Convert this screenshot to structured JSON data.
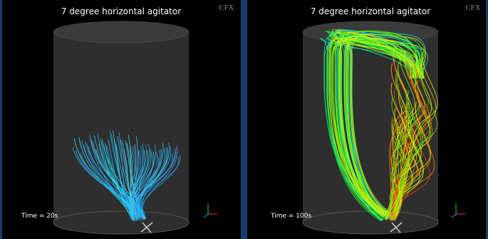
{
  "panels": [
    {
      "title": "7 degree horizontal agitator",
      "time_label": "Time = 20s",
      "logo": "CFX"
    },
    {
      "title": "7 degree horizontal agitator",
      "time_label": "Time = 100s",
      "logo": "CFX"
    }
  ]
}
